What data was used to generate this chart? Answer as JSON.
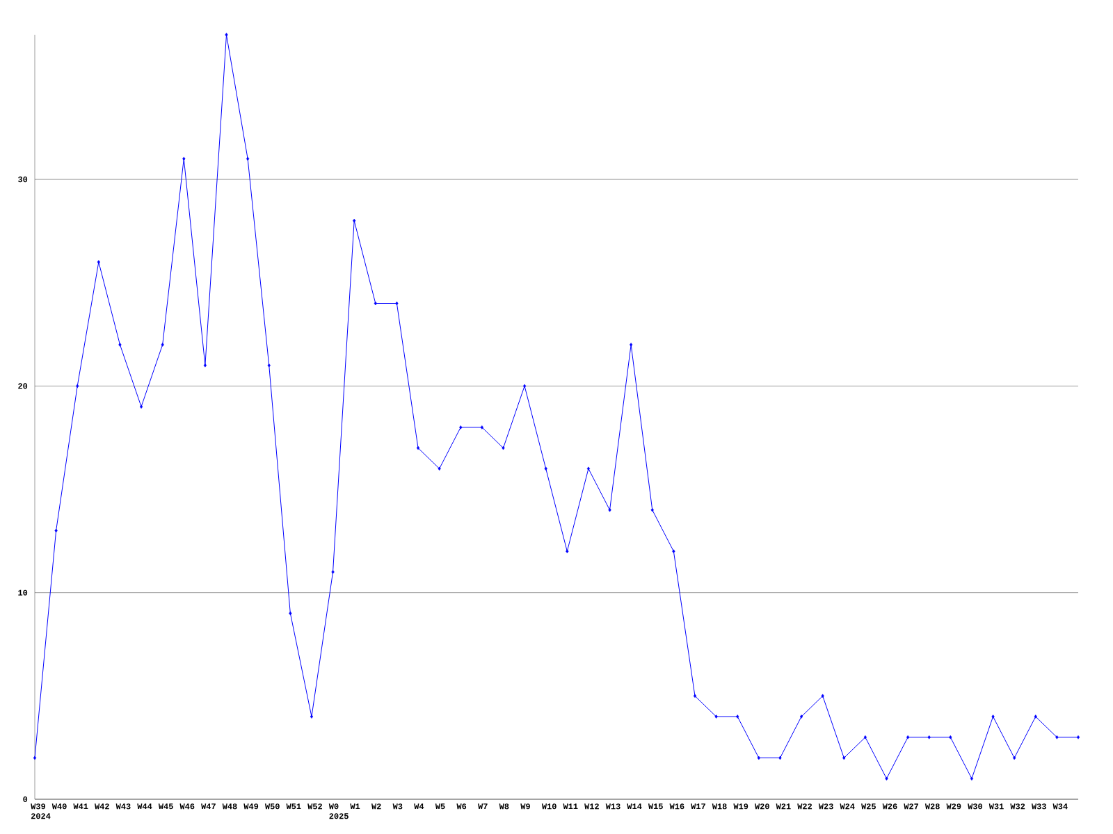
{
  "chart_data": {
    "type": "line",
    "categories": [
      "W39 2024",
      "W40",
      "W41",
      "W42",
      "W43",
      "W44",
      "W45",
      "W46",
      "W47",
      "W48",
      "W49",
      "W50",
      "W51",
      "W52",
      "W0 2025",
      "W1",
      "W2",
      "W3",
      "W4",
      "W5",
      "W6",
      "W7",
      "W8",
      "W9",
      "W10",
      "W11",
      "W12",
      "W13",
      "W14",
      "W15",
      "W16",
      "W17",
      "W18",
      "W19",
      "W20",
      "W21",
      "W22",
      "W23",
      "W24",
      "W25",
      "W26",
      "W27",
      "W28",
      "W29",
      "W30",
      "W31",
      "W32",
      "W33",
      "W34",
      null
    ],
    "series": [
      {
        "color": "#0000ff",
        "values": [
          2,
          13,
          20,
          26,
          22,
          19,
          22,
          31,
          21,
          37,
          31,
          21,
          9,
          4,
          11,
          28,
          24,
          24,
          17,
          16,
          18,
          18,
          17,
          20,
          16,
          12,
          16,
          14,
          22,
          14,
          12,
          5,
          4,
          4,
          2,
          2,
          4,
          5,
          2,
          3,
          1,
          3,
          3,
          3,
          1,
          4,
          2,
          4,
          3,
          3
        ]
      }
    ],
    "ylim": [
      0,
      37
    ],
    "yticks": [
      0,
      10,
      20,
      30
    ],
    "grid": "y",
    "marker": "diamond"
  }
}
